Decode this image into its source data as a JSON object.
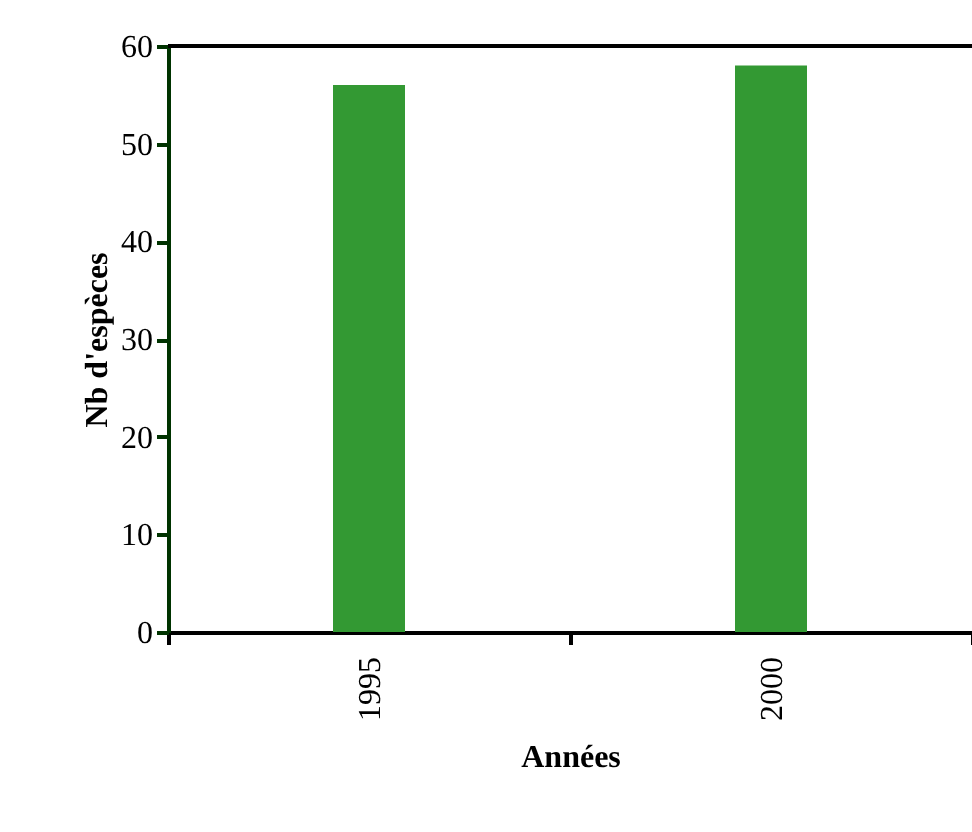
{
  "chart_data": {
    "type": "bar",
    "xlabel": "Années",
    "ylabel": "Nb d'espèces",
    "categories": [
      "1995",
      "2000"
    ],
    "values": [
      56,
      58
    ],
    "color": "#339933",
    "ylim": [
      0,
      60
    ],
    "yticks": [
      0,
      10,
      20,
      30,
      40,
      50,
      60
    ],
    "grid": false
  }
}
